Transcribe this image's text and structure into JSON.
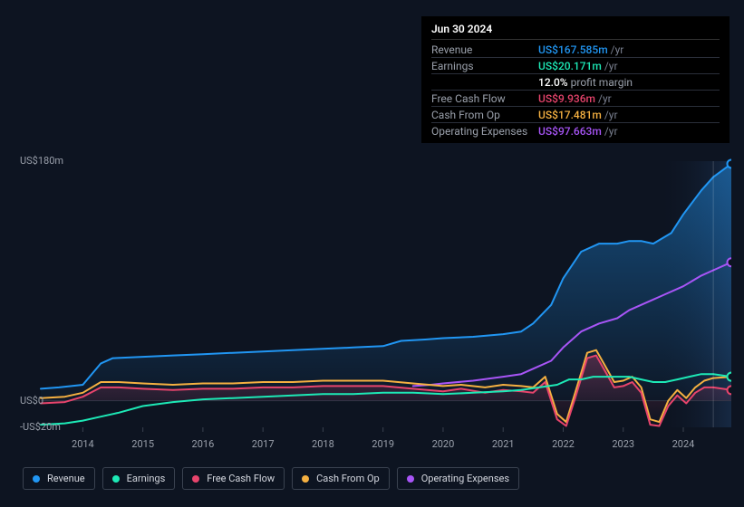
{
  "chart": {
    "type": "line-area",
    "background_color": "#0d1421",
    "plot_background": "#0d1421",
    "font": "sans-serif",
    "axis_text_color": "#9aa0ab",
    "y_axis": {
      "min": -20,
      "max": 180,
      "ticks": [
        {
          "v": 180,
          "label": "US$180m"
        },
        {
          "v": 0,
          "label": "US$0"
        },
        {
          "v": -20,
          "label": "-US$20m"
        }
      ],
      "label_fontsize": 11
    },
    "x_axis": {
      "min": 2013.3,
      "max": 2024.8,
      "ticks": [
        2014,
        2015,
        2016,
        2017,
        2018,
        2019,
        2020,
        2021,
        2022,
        2023,
        2024
      ],
      "label_fontsize": 11
    },
    "highlight_band": {
      "from": 2023.65,
      "to": 2024.8,
      "fill_left": "#0d1421",
      "fill_right": "#1a2740"
    },
    "vertical_marker": {
      "x": 2024.5,
      "color": "rgba(255,255,255,0.18)"
    },
    "series": [
      {
        "id": "revenue",
        "label": "Revenue",
        "color": "#2196f3",
        "type": "area",
        "fill_opacity_top": 0.45,
        "fill_opacity_bottom": 0.05,
        "line_width": 2,
        "data": [
          [
            2013.3,
            9
          ],
          [
            2013.6,
            10
          ],
          [
            2014.0,
            12
          ],
          [
            2014.3,
            28
          ],
          [
            2014.5,
            32
          ],
          [
            2015.0,
            33
          ],
          [
            2015.5,
            34
          ],
          [
            2016.0,
            35
          ],
          [
            2016.5,
            36
          ],
          [
            2017.0,
            37
          ],
          [
            2017.5,
            38
          ],
          [
            2018.0,
            39
          ],
          [
            2018.5,
            40
          ],
          [
            2019.0,
            41
          ],
          [
            2019.3,
            45
          ],
          [
            2019.7,
            46
          ],
          [
            2020.0,
            47
          ],
          [
            2020.5,
            48
          ],
          [
            2021.0,
            50
          ],
          [
            2021.3,
            52
          ],
          [
            2021.5,
            58
          ],
          [
            2021.8,
            72
          ],
          [
            2022.0,
            92
          ],
          [
            2022.3,
            112
          ],
          [
            2022.6,
            118
          ],
          [
            2022.9,
            118
          ],
          [
            2023.1,
            120
          ],
          [
            2023.3,
            120
          ],
          [
            2023.5,
            118
          ],
          [
            2023.8,
            126
          ],
          [
            2024.0,
            140
          ],
          [
            2024.3,
            158
          ],
          [
            2024.5,
            168
          ],
          [
            2024.8,
            178
          ]
        ]
      },
      {
        "id": "op_exp",
        "label": "Operating Expenses",
        "color": "#a855f7",
        "type": "line",
        "line_width": 2,
        "data": [
          [
            2019.5,
            11
          ],
          [
            2019.8,
            12
          ],
          [
            2020.0,
            13
          ],
          [
            2020.5,
            15
          ],
          [
            2021.0,
            18
          ],
          [
            2021.3,
            20
          ],
          [
            2021.5,
            24
          ],
          [
            2021.8,
            30
          ],
          [
            2022.0,
            40
          ],
          [
            2022.3,
            52
          ],
          [
            2022.6,
            58
          ],
          [
            2022.9,
            62
          ],
          [
            2023.1,
            68
          ],
          [
            2023.4,
            74
          ],
          [
            2023.7,
            80
          ],
          [
            2024.0,
            86
          ],
          [
            2024.3,
            94
          ],
          [
            2024.5,
            98
          ],
          [
            2024.8,
            104
          ]
        ]
      },
      {
        "id": "cash_from_op",
        "label": "Cash From Op",
        "color": "#f5b041",
        "type": "line",
        "line_width": 2,
        "data": [
          [
            2013.3,
            2
          ],
          [
            2013.7,
            3
          ],
          [
            2014.0,
            6
          ],
          [
            2014.3,
            14
          ],
          [
            2014.6,
            14
          ],
          [
            2015.0,
            13
          ],
          [
            2015.5,
            12
          ],
          [
            2016.0,
            13
          ],
          [
            2016.5,
            13
          ],
          [
            2017.0,
            14
          ],
          [
            2017.5,
            14
          ],
          [
            2018.0,
            15
          ],
          [
            2018.5,
            15
          ],
          [
            2019.0,
            15
          ],
          [
            2019.5,
            13
          ],
          [
            2020.0,
            11
          ],
          [
            2020.3,
            12
          ],
          [
            2020.7,
            10
          ],
          [
            2021.0,
            12
          ],
          [
            2021.3,
            11
          ],
          [
            2021.5,
            10
          ],
          [
            2021.7,
            18
          ],
          [
            2021.9,
            -10
          ],
          [
            2022.05,
            -16
          ],
          [
            2022.2,
            6
          ],
          [
            2022.4,
            36
          ],
          [
            2022.55,
            38
          ],
          [
            2022.7,
            26
          ],
          [
            2022.85,
            14
          ],
          [
            2023.0,
            15
          ],
          [
            2023.15,
            18
          ],
          [
            2023.3,
            10
          ],
          [
            2023.45,
            -14
          ],
          [
            2023.6,
            -16
          ],
          [
            2023.75,
            0
          ],
          [
            2023.9,
            8
          ],
          [
            2024.05,
            2
          ],
          [
            2024.2,
            10
          ],
          [
            2024.35,
            15
          ],
          [
            2024.5,
            17
          ],
          [
            2024.8,
            18
          ]
        ]
      },
      {
        "id": "fcf",
        "label": "Free Cash Flow",
        "color": "#e7446c",
        "type": "area",
        "fill_opacity_top": 0.25,
        "fill_opacity_bottom": 0.0,
        "line_width": 2,
        "data": [
          [
            2013.3,
            -2
          ],
          [
            2013.7,
            -1
          ],
          [
            2014.0,
            3
          ],
          [
            2014.3,
            10
          ],
          [
            2014.6,
            10
          ],
          [
            2015.0,
            9
          ],
          [
            2015.5,
            8
          ],
          [
            2016.0,
            9
          ],
          [
            2016.5,
            9
          ],
          [
            2017.0,
            10
          ],
          [
            2017.5,
            10
          ],
          [
            2018.0,
            11
          ],
          [
            2018.5,
            11
          ],
          [
            2019.0,
            11
          ],
          [
            2019.5,
            9
          ],
          [
            2020.0,
            7
          ],
          [
            2020.3,
            9
          ],
          [
            2020.7,
            6
          ],
          [
            2021.0,
            8
          ],
          [
            2021.3,
            7
          ],
          [
            2021.5,
            6
          ],
          [
            2021.7,
            14
          ],
          [
            2021.9,
            -14
          ],
          [
            2022.05,
            -19
          ],
          [
            2022.2,
            2
          ],
          [
            2022.4,
            32
          ],
          [
            2022.55,
            34
          ],
          [
            2022.7,
            22
          ],
          [
            2022.85,
            10
          ],
          [
            2023.0,
            11
          ],
          [
            2023.15,
            14
          ],
          [
            2023.3,
            6
          ],
          [
            2023.45,
            -18
          ],
          [
            2023.6,
            -19
          ],
          [
            2023.75,
            -4
          ],
          [
            2023.9,
            4
          ],
          [
            2024.05,
            -2
          ],
          [
            2024.2,
            6
          ],
          [
            2024.35,
            10
          ],
          [
            2024.5,
            10
          ],
          [
            2024.8,
            8
          ]
        ]
      },
      {
        "id": "earnings",
        "label": "Earnings",
        "color": "#1de9b6",
        "type": "line",
        "line_width": 2,
        "data": [
          [
            2013.3,
            -18
          ],
          [
            2013.7,
            -17
          ],
          [
            2014.0,
            -15
          ],
          [
            2014.3,
            -12
          ],
          [
            2014.6,
            -9
          ],
          [
            2015.0,
            -4
          ],
          [
            2015.5,
            -1
          ],
          [
            2016.0,
            1
          ],
          [
            2016.5,
            2
          ],
          [
            2017.0,
            3
          ],
          [
            2017.5,
            4
          ],
          [
            2018.0,
            5
          ],
          [
            2018.5,
            5
          ],
          [
            2019.0,
            6
          ],
          [
            2019.5,
            6
          ],
          [
            2020.0,
            5
          ],
          [
            2020.5,
            6
          ],
          [
            2021.0,
            7
          ],
          [
            2021.3,
            8
          ],
          [
            2021.6,
            10
          ],
          [
            2021.9,
            12
          ],
          [
            2022.1,
            16
          ],
          [
            2022.3,
            16
          ],
          [
            2022.5,
            18
          ],
          [
            2022.7,
            18
          ],
          [
            2022.9,
            18
          ],
          [
            2023.1,
            18
          ],
          [
            2023.3,
            16
          ],
          [
            2023.5,
            14
          ],
          [
            2023.7,
            14
          ],
          [
            2023.9,
            16
          ],
          [
            2024.1,
            18
          ],
          [
            2024.3,
            20
          ],
          [
            2024.5,
            20
          ],
          [
            2024.8,
            18
          ]
        ]
      }
    ],
    "end_markers": [
      {
        "series": "revenue",
        "x": 2024.8,
        "y": 178
      },
      {
        "series": "op_exp",
        "x": 2024.8,
        "y": 104
      },
      {
        "series": "cash_from_op",
        "x": 2024.8,
        "y": 18
      },
      {
        "series": "earnings",
        "x": 2024.8,
        "y": 18
      },
      {
        "series": "fcf",
        "x": 2024.8,
        "y": 8
      }
    ]
  },
  "tooltip": {
    "date": "Jun 30 2024",
    "rows": [
      {
        "label": "Revenue",
        "value": "US$167.585m",
        "unit": "/yr",
        "color": "#2196f3"
      },
      {
        "label": "Earnings",
        "value": "US$20.171m",
        "unit": "/yr",
        "color": "#1de9b6",
        "extra_value": "12.0%",
        "extra_label": "profit margin"
      },
      {
        "label": "Free Cash Flow",
        "value": "US$9.936m",
        "unit": "/yr",
        "color": "#e7446c"
      },
      {
        "label": "Cash From Op",
        "value": "US$17.481m",
        "unit": "/yr",
        "color": "#f5b041"
      },
      {
        "label": "Operating Expenses",
        "value": "US$97.663m",
        "unit": "/yr",
        "color": "#a855f7"
      }
    ]
  },
  "legend": {
    "border_color": "#3a4250",
    "text_color": "#d4d7df",
    "fontsize": 11,
    "items": [
      {
        "id": "revenue",
        "label": "Revenue",
        "color": "#2196f3"
      },
      {
        "id": "earnings",
        "label": "Earnings",
        "color": "#1de9b6"
      },
      {
        "id": "fcf",
        "label": "Free Cash Flow",
        "color": "#e7446c"
      },
      {
        "id": "cash_from_op",
        "label": "Cash From Op",
        "color": "#f5b041"
      },
      {
        "id": "op_exp",
        "label": "Operating Expenses",
        "color": "#a855f7"
      }
    ]
  }
}
